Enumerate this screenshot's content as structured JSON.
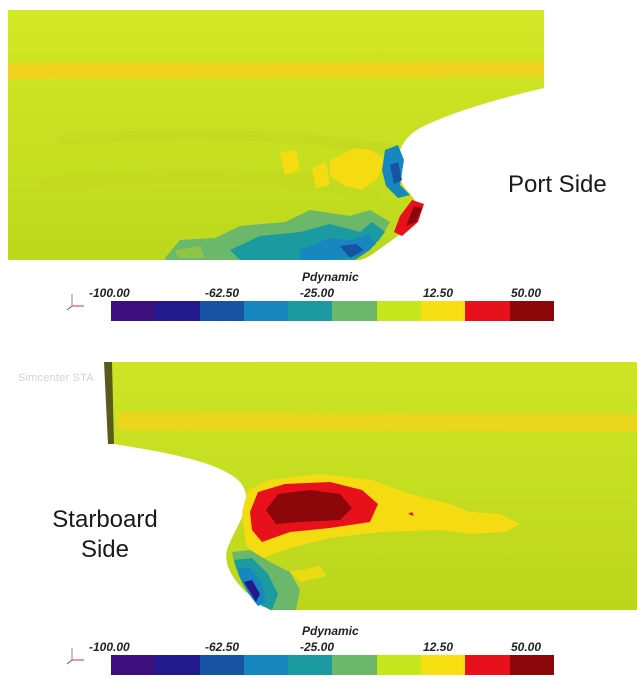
{
  "watermark": "Simcenter STA",
  "panels": [
    {
      "side_label": "Port Side"
    },
    {
      "side_label": "Starboard Side"
    }
  ],
  "legend": {
    "title": "Pdynamic",
    "ticks": [
      "-100.00",
      "-62.50",
      "-25.00",
      "12.50",
      "50.00"
    ],
    "colors": [
      "#3b0f7e",
      "#221b8f",
      "#1653a3",
      "#1887c0",
      "#1b9aa0",
      "#6cb86a",
      "#c5e61a",
      "#f7df11",
      "#e8101b",
      "#8b0709"
    ]
  },
  "surface_colors": {
    "hull": "#c9e21b",
    "stripe": "#f0d51a",
    "positive": "#f5dc12",
    "high": "#e8101b",
    "peak": "#8b0709",
    "negative": "#1887c0",
    "low": "#1653a3",
    "mid": "#6cb86a"
  }
}
